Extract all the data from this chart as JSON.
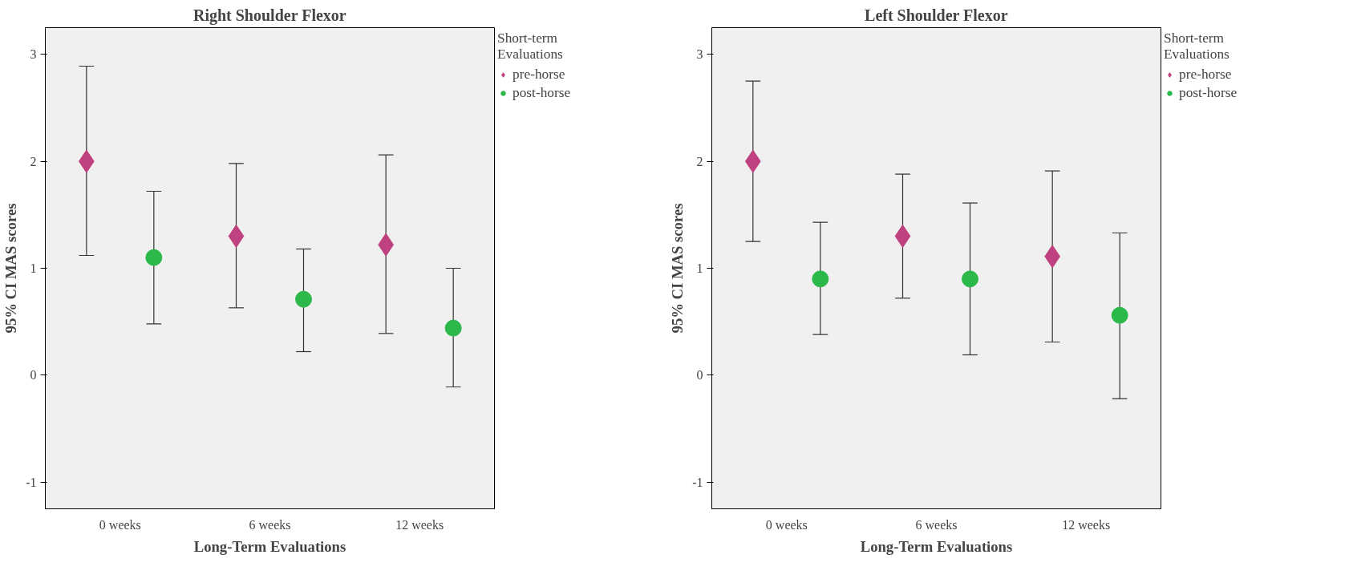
{
  "chart_data": [
    {
      "type": "scatter",
      "title": "Right Shoulder Flexor",
      "xlabel": "Long-Term Evaluations",
      "ylabel": "95% CI MAS scores",
      "legend_title": "Short-term\nEvaluations",
      "legend": "right",
      "grid": false,
      "categories": [
        "0 weeks",
        "6 weeks",
        "12 weeks"
      ],
      "ylim": [
        -1.25,
        3.25
      ],
      "yticks": [
        -1,
        0,
        1,
        2,
        3
      ],
      "series": [
        {
          "name": "pre-horse",
          "color": "#c0417f",
          "marker": "diamond",
          "values": [
            2.0,
            1.3,
            1.22
          ],
          "errors": [
            [
              1.12,
              2.89
            ],
            [
              0.63,
              1.98
            ],
            [
              0.39,
              2.06
            ]
          ]
        },
        {
          "name": "post-horse",
          "color": "#2db84b",
          "marker": "circle",
          "values": [
            1.1,
            0.71,
            0.44
          ],
          "errors": [
            [
              0.48,
              1.72
            ],
            [
              0.22,
              1.18
            ],
            [
              -0.11,
              1.0
            ]
          ]
        }
      ]
    },
    {
      "type": "scatter",
      "title": "Left Shoulder Flexor",
      "xlabel": "Long-Term Evaluations",
      "ylabel": "95% CI MAS scores",
      "legend_title": "Short-term\nEvaluations",
      "legend": "right",
      "grid": false,
      "categories": [
        "0 weeks",
        "6 weeks",
        "12 weeks"
      ],
      "ylim": [
        -1.25,
        3.25
      ],
      "yticks": [
        -1,
        0,
        1,
        2,
        3
      ],
      "series": [
        {
          "name": "pre-horse",
          "color": "#c0417f",
          "marker": "diamond",
          "values": [
            2.0,
            1.3,
            1.11
          ],
          "errors": [
            [
              1.25,
              2.75
            ],
            [
              0.72,
              1.88
            ],
            [
              0.31,
              1.91
            ]
          ]
        },
        {
          "name": "post-horse",
          "color": "#2db84b",
          "marker": "circle",
          "values": [
            0.9,
            0.9,
            0.56
          ],
          "errors": [
            [
              0.38,
              1.43
            ],
            [
              0.19,
              1.61
            ],
            [
              -0.22,
              1.33
            ]
          ]
        }
      ]
    }
  ]
}
